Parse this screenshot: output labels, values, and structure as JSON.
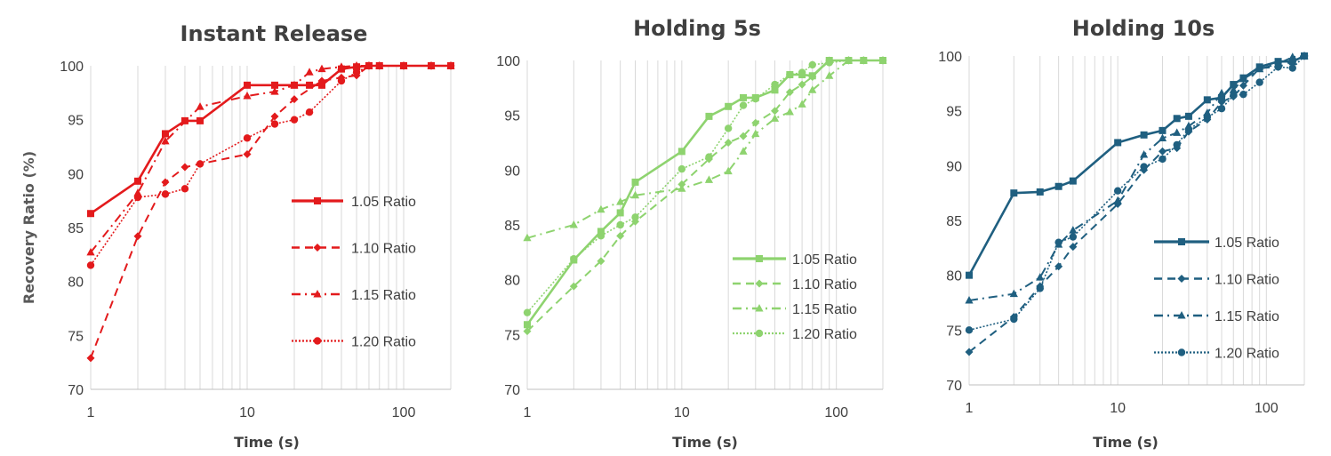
{
  "chart_data": [
    {
      "type": "line",
      "title": "Instant Release",
      "xlabel": "Time (s)",
      "ylabel": "Recovery Ratio (%)",
      "xscale": "log",
      "xlim": [
        1,
        200
      ],
      "ylim": [
        70,
        100
      ],
      "xticks": [
        1,
        10,
        100
      ],
      "yticks": [
        70,
        75,
        80,
        85,
        90,
        95,
        100
      ],
      "grid": "vertical major",
      "legend_position": "center-right",
      "color": "#e31a1c",
      "series": [
        {
          "name": "1.05 Ratio",
          "line_style": "solid",
          "marker": "square",
          "x": [
            1,
            2,
            3,
            4,
            5,
            10,
            15,
            20,
            25,
            30,
            40,
            50,
            60,
            70,
            100,
            150,
            200
          ],
          "y": [
            86.3,
            89.3,
            93.7,
            94.9,
            94.9,
            98.2,
            98.2,
            98.2,
            98.2,
            98.2,
            99.7,
            99.9,
            100,
            100,
            100,
            100,
            100
          ]
        },
        {
          "name": "1.10 Ratio",
          "line_style": "dashed",
          "marker": "diamond",
          "x": [
            1,
            2,
            3,
            4,
            5,
            10,
            15,
            20,
            30,
            40,
            50,
            60,
            70,
            100,
            150,
            200
          ],
          "y": [
            72.9,
            84.2,
            89.2,
            90.6,
            90.9,
            91.8,
            95.3,
            96.9,
            98.6,
            98.9,
            99.1,
            100,
            100,
            100,
            100,
            100
          ]
        },
        {
          "name": "1.15 Ratio",
          "line_style": "dash-dot",
          "marker": "triangle",
          "x": [
            1,
            2,
            3,
            5,
            10,
            15,
            20,
            25,
            30,
            40,
            50,
            60,
            70,
            100,
            150,
            200
          ],
          "y": [
            82.7,
            88.2,
            93.0,
            96.2,
            97.2,
            97.6,
            98.2,
            99.4,
            99.7,
            99.9,
            100,
            100,
            100,
            100,
            100,
            100
          ]
        },
        {
          "name": "1.20 Ratio",
          "line_style": "dotted",
          "marker": "circle",
          "x": [
            1,
            2,
            3,
            4,
            5,
            10,
            15,
            20,
            25,
            40,
            50,
            60,
            70,
            100,
            150,
            200
          ],
          "y": [
            81.5,
            87.8,
            88.1,
            88.6,
            90.9,
            93.3,
            94.6,
            95.0,
            95.7,
            98.6,
            99.4,
            100,
            100,
            100,
            100,
            100
          ]
        }
      ]
    },
    {
      "type": "line",
      "title": "Holding 5s",
      "xlabel": "Time (s)",
      "xscale": "log",
      "xlim": [
        1,
        200
      ],
      "ylim": [
        70,
        100
      ],
      "xticks": [
        1,
        10,
        100
      ],
      "yticks": [
        70,
        75,
        80,
        85,
        90,
        95,
        100
      ],
      "grid": "vertical major",
      "legend_position": "bottom-right",
      "color": "#8ed36f",
      "series": [
        {
          "name": "1.05 Ratio",
          "line_style": "solid",
          "marker": "square",
          "x": [
            1,
            2,
            3,
            4,
            5,
            10,
            15,
            20,
            25,
            30,
            40,
            50,
            60,
            70,
            90,
            120,
            150,
            200
          ],
          "y": [
            75.9,
            81.8,
            84.4,
            86.1,
            88.9,
            91.7,
            94.9,
            95.8,
            96.6,
            96.6,
            97.3,
            98.7,
            98.7,
            98.6,
            100,
            100,
            100,
            100
          ]
        },
        {
          "name": "1.10 Ratio",
          "line_style": "dashed",
          "marker": "diamond",
          "x": [
            1,
            2,
            3,
            4,
            5,
            10,
            15,
            20,
            25,
            30,
            40,
            50,
            60,
            70,
            90,
            120,
            150,
            200
          ],
          "y": [
            75.3,
            79.4,
            81.7,
            84.0,
            85.3,
            88.7,
            91.0,
            92.5,
            93.1,
            94.3,
            95.4,
            97.1,
            97.8,
            98.5,
            100,
            100,
            100,
            100
          ]
        },
        {
          "name": "1.15 Ratio",
          "line_style": "dash-dot",
          "marker": "triangle",
          "x": [
            1,
            2,
            3,
            4,
            5,
            10,
            15,
            20,
            25,
            30,
            40,
            50,
            60,
            70,
            90,
            120,
            150,
            200
          ],
          "y": [
            83.8,
            85.0,
            86.4,
            87.1,
            87.7,
            88.3,
            89.1,
            89.9,
            91.7,
            93.3,
            94.7,
            95.3,
            96.0,
            97.3,
            98.6,
            100,
            100,
            100
          ]
        },
        {
          "name": "1.20 Ratio",
          "line_style": "dotted",
          "marker": "circle",
          "x": [
            1,
            2,
            3,
            4,
            5,
            10,
            15,
            20,
            25,
            30,
            40,
            50,
            60,
            70,
            90,
            120,
            150,
            200
          ],
          "y": [
            77.0,
            81.9,
            84.0,
            85.0,
            85.7,
            90.1,
            91.2,
            93.8,
            95.9,
            96.5,
            97.8,
            98.7,
            98.9,
            99.6,
            99.8,
            100,
            100,
            100
          ]
        }
      ]
    },
    {
      "type": "line",
      "title": "Holding 10s",
      "xlabel": "Time (s)",
      "xscale": "log",
      "xlim": [
        1,
        180
      ],
      "ylim": [
        70,
        100
      ],
      "xticks": [
        1,
        10,
        100
      ],
      "yticks": [
        70,
        75,
        80,
        85,
        90,
        95,
        100
      ],
      "grid": "vertical major",
      "legend_position": "bottom-right",
      "color": "#1f5f80",
      "series": [
        {
          "name": "1.05 Ratio",
          "line_style": "solid",
          "marker": "square",
          "x": [
            1,
            2,
            3,
            4,
            5,
            10,
            15,
            20,
            25,
            30,
            40,
            50,
            60,
            70,
            90,
            120,
            150,
            180
          ],
          "y": [
            80.0,
            87.5,
            87.6,
            88.1,
            88.6,
            92.1,
            92.8,
            93.2,
            94.3,
            94.5,
            96.0,
            96.2,
            97.4,
            98.0,
            99.0,
            99.5,
            99.5,
            100
          ]
        },
        {
          "name": "1.10 Ratio",
          "line_style": "dashed",
          "marker": "diamond",
          "x": [
            1,
            2,
            3,
            4,
            5,
            10,
            15,
            20,
            25,
            30,
            40,
            50,
            60,
            70,
            90,
            120,
            150,
            180
          ],
          "y": [
            73.0,
            76.2,
            79.0,
            80.8,
            82.6,
            86.5,
            89.6,
            91.3,
            91.6,
            93.1,
            94.2,
            95.8,
            96.3,
            97.3,
            98.9,
            99.0,
            99.5,
            100
          ]
        },
        {
          "name": "1.15 Ratio",
          "line_style": "dash-dot",
          "marker": "triangle",
          "x": [
            1,
            2,
            3,
            4,
            5,
            10,
            15,
            20,
            25,
            30,
            40,
            50,
            60,
            70,
            90,
            120,
            150,
            180
          ],
          "y": [
            77.7,
            78.3,
            79.8,
            82.8,
            84.1,
            86.8,
            91.0,
            92.5,
            93.0,
            93.6,
            94.8,
            96.6,
            96.9,
            97.9,
            98.8,
            99.3,
            99.9,
            100
          ]
        },
        {
          "name": "1.20 Ratio",
          "line_style": "dotted",
          "marker": "circle",
          "x": [
            1,
            2,
            3,
            4,
            5,
            10,
            15,
            20,
            25,
            30,
            40,
            50,
            60,
            70,
            90,
            120,
            150,
            180
          ],
          "y": [
            75.0,
            76.0,
            78.8,
            83.0,
            83.5,
            87.7,
            89.9,
            90.6,
            91.9,
            93.3,
            94.4,
            95.2,
            96.4,
            96.5,
            97.6,
            99.0,
            98.9,
            100
          ]
        }
      ]
    }
  ]
}
